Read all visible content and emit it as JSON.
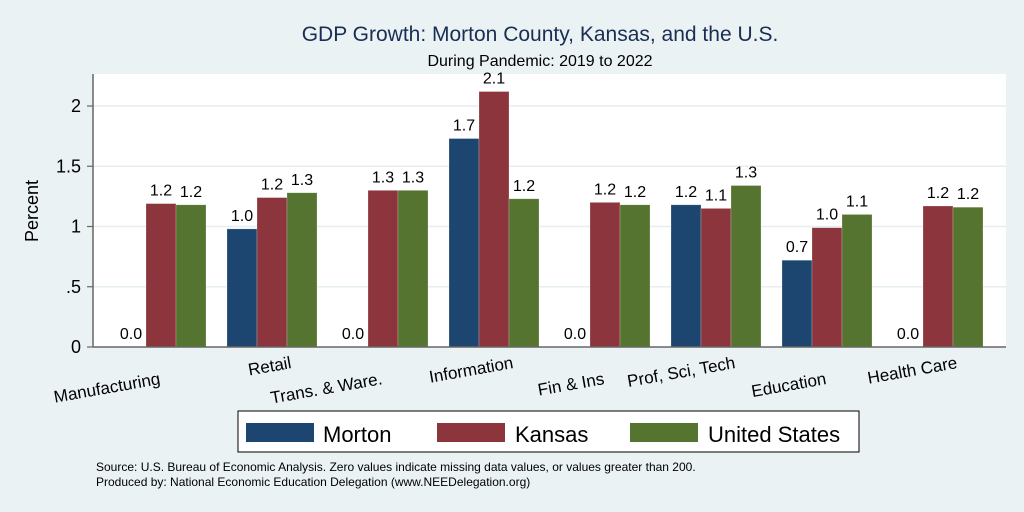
{
  "chart_data": {
    "type": "bar",
    "title": "GDP Growth: Morton County, Kansas, and the U.S.",
    "subtitle": "During Pandemic: 2019 to 2022",
    "xlabel": "",
    "ylabel": "Percent",
    "ylim": [
      0,
      2.25
    ],
    "yticks": [
      0,
      0.5,
      1,
      1.5,
      2
    ],
    "ytick_labels": [
      "0",
      ".5",
      "1",
      "1.5",
      "2"
    ],
    "grid": true,
    "legend_position": "bottom",
    "categories": [
      "Manufacturing",
      "Retail",
      "Trans. & Ware.",
      "Information",
      "Fin & Ins",
      "Prof, Sci, Tech",
      "Education",
      "Health Care"
    ],
    "series": [
      {
        "name": "Morton",
        "color": "#1c4670",
        "values": [
          0.0,
          0.98,
          0.0,
          1.73,
          0.0,
          1.18,
          0.72,
          0.0
        ],
        "labels": [
          "0.0",
          "1.0",
          "0.0",
          "1.7",
          "0.0",
          "1.2",
          "0.7",
          "0.0"
        ]
      },
      {
        "name": "Kansas",
        "color": "#8d353d",
        "values": [
          1.19,
          1.24,
          1.3,
          2.12,
          1.2,
          1.15,
          0.99,
          1.17
        ],
        "labels": [
          "1.2",
          "1.2",
          "1.3",
          "2.1",
          "1.2",
          "1.1",
          "1.0",
          "1.2"
        ]
      },
      {
        "name": "United States",
        "color": "#55742f",
        "values": [
          1.18,
          1.28,
          1.3,
          1.23,
          1.18,
          1.34,
          1.1,
          1.16
        ],
        "labels": [
          "1.2",
          "1.3",
          "1.3",
          "1.2",
          "1.2",
          "1.3",
          "1.1",
          "1.2"
        ]
      }
    ],
    "notes": [
      "Source: U.S. Bureau of Economic Analysis. Zero values indicate missing data values, or values greater than 200.",
      "Produced by: National Economic Education Delegation (www.NEEDelegation.org)"
    ]
  },
  "colors": {
    "background": "#eaf2f3",
    "plot_background": "#ffffff",
    "title": "#1a2e55",
    "grid": "#e6eef0",
    "axis": "#666666"
  }
}
